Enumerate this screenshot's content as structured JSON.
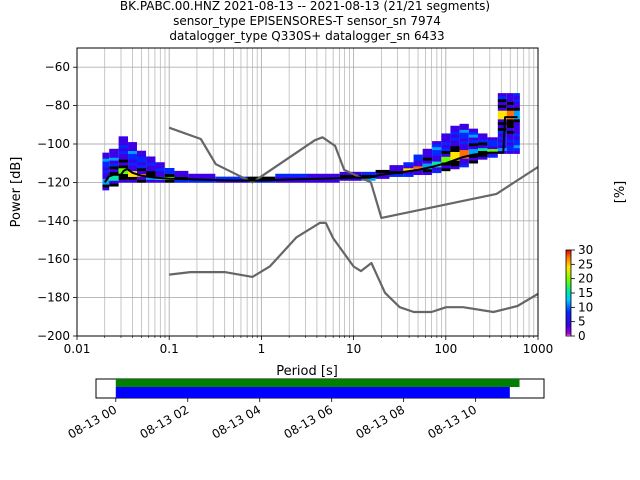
{
  "title_lines": [
    "BK.PABC.00.HNZ   2021-08-13 -- 2021-08-13  (21/21 segments)",
    "sensor_type EPISENSORES-T sensor_sn 7974",
    "datalogger_type Q330S+ datalogger_sn 6433"
  ],
  "colors": {
    "noise_model": "#666666",
    "mean_curve": "#000000",
    "grid": "#b0b0b0",
    "coverage_data": "#0000ff",
    "coverage_gaps": "#008000"
  },
  "chart_data": [
    {
      "type": "heatmap",
      "xlabel": "Period [s]",
      "ylabel": "Power [dB]",
      "x_scale": "log",
      "xlim": [
        0.01,
        1000
      ],
      "ylim": [
        -200,
        -50
      ],
      "x_ticks": [
        0.01,
        0.1,
        1,
        10,
        100,
        1000
      ],
      "x_tick_labels": [
        "0.01",
        "0.1",
        "1",
        "10",
        "100",
        "1000"
      ],
      "y_ticks": [
        -200,
        -180,
        -160,
        -140,
        -120,
        -100,
        -80,
        -60
      ],
      "y_tick_labels": [
        "−200",
        "−180",
        "−160",
        "−140",
        "−120",
        "−100",
        "−80",
        "−60"
      ],
      "grid": true,
      "colorbar": {
        "label": "[%]",
        "range": [
          0,
          30
        ],
        "ticks": [
          0,
          5,
          10,
          15,
          20,
          25,
          30
        ],
        "tick_labels": [
          "0",
          "5",
          "10",
          "15",
          "20",
          "25",
          "30"
        ],
        "colormap": "pqlx"
      },
      "series": [
        {
          "kind": "noise_model_high",
          "x": [
            0.1,
            0.22,
            0.32,
            0.8,
            3.8,
            4.6,
            6.3,
            7.9,
            15.4,
            20,
            354.8,
            1000
          ],
          "y": [
            -91.5,
            -97.4,
            -110.5,
            -120,
            -98,
            -96.5,
            -101,
            -113.5,
            -120,
            -138.5,
            -126,
            -112
          ]
        },
        {
          "kind": "noise_model_low",
          "x": [
            0.1,
            0.17,
            0.4,
            0.8,
            1.24,
            2.4,
            4.3,
            5.0,
            6.0,
            10,
            12,
            15.6,
            21.9,
            31.6,
            45,
            70,
            101,
            154,
            328,
            600,
            1000
          ],
          "y": [
            -168,
            -166.7,
            -166.7,
            -169.2,
            -163.7,
            -148.6,
            -141.1,
            -141.1,
            -149,
            -163.8,
            -166.2,
            -162,
            -177.5,
            -185,
            -187.5,
            -187.5,
            -185,
            -185,
            -187.5,
            -184.4,
            -178
          ]
        },
        {
          "kind": "mean",
          "x": [
            0.02,
            0.022,
            0.025,
            0.03,
            0.032,
            0.035,
            0.04,
            0.05,
            0.07,
            0.1,
            0.2,
            0.5,
            1,
            2,
            5,
            10,
            15,
            20,
            30,
            50,
            70,
            100,
            150,
            200,
            300,
            420,
            440,
            500,
            600
          ],
          "y": [
            -120,
            -117,
            -116,
            -116,
            -114,
            -113,
            -115,
            -116.5,
            -117.5,
            -118,
            -118.5,
            -119,
            -119,
            -118.5,
            -118,
            -117.5,
            -117.5,
            -116,
            -115,
            -113.5,
            -112,
            -110,
            -107,
            -105.5,
            -104.5,
            -104.5,
            -86,
            -86,
            -86
          ]
        }
      ],
      "psd_density": [
        {
          "period": 0.02,
          "spread": [
            -124,
            -105
          ],
          "mode": -120
        },
        {
          "period": 0.025,
          "spread": [
            -122,
            -104
          ],
          "mode": -118
        },
        {
          "period": 0.032,
          "spread": [
            -120,
            -97
          ],
          "mode": -115
        },
        {
          "period": 0.04,
          "spread": [
            -120,
            -100
          ],
          "mode": -116
        },
        {
          "period": 0.05,
          "spread": [
            -120,
            -104
          ],
          "mode": -117
        },
        {
          "period": 0.063,
          "spread": [
            -120,
            -108
          ],
          "mode": -118
        },
        {
          "period": 0.08,
          "spread": [
            -120,
            -111
          ],
          "mode": -118
        },
        {
          "period": 0.1,
          "spread": [
            -120,
            -113
          ],
          "mode": -118
        },
        {
          "period": 0.13,
          "spread": [
            -120,
            -115
          ],
          "mode": -118
        },
        {
          "period": 0.2,
          "spread": [
            -120,
            -117
          ],
          "mode": -119
        },
        {
          "period": 0.5,
          "spread": [
            -120,
            -118
          ],
          "mode": -119
        },
        {
          "period": 1,
          "spread": [
            -120,
            -118
          ],
          "mode": -119
        },
        {
          "period": 2,
          "spread": [
            -120,
            -117
          ],
          "mode": -118
        },
        {
          "period": 5,
          "spread": [
            -120,
            -117
          ],
          "mode": -118
        },
        {
          "period": 10,
          "spread": [
            -119,
            -116
          ],
          "mode": -118
        },
        {
          "period": 15,
          "spread": [
            -119,
            -115
          ],
          "mode": -117
        },
        {
          "period": 20,
          "spread": [
            -118,
            -114
          ],
          "mode": -116
        },
        {
          "period": 30,
          "spread": [
            -117,
            -112
          ],
          "mode": -115
        },
        {
          "period": 40,
          "spread": [
            -117,
            -110
          ],
          "mode": -114
        },
        {
          "period": 50,
          "spread": [
            -116,
            -106
          ],
          "mode": -113
        },
        {
          "period": 63,
          "spread": [
            -116,
            -103
          ],
          "mode": -112
        },
        {
          "period": 80,
          "spread": [
            -115,
            -99
          ],
          "mode": -111
        },
        {
          "period": 100,
          "spread": [
            -114,
            -95
          ],
          "mode": -109
        },
        {
          "period": 126,
          "spread": [
            -113,
            -92
          ],
          "mode": -107
        },
        {
          "period": 158,
          "spread": [
            -112,
            -91
          ],
          "mode": -106
        },
        {
          "period": 200,
          "spread": [
            -110,
            -93
          ],
          "mode": -105
        },
        {
          "period": 250,
          "spread": [
            -108,
            -96
          ],
          "mode": -104
        },
        {
          "period": 320,
          "spread": [
            -107,
            -98
          ],
          "mode": -104
        },
        {
          "period": 420,
          "spread": [
            -105,
            -75
          ],
          "mode": -86
        },
        {
          "period": 500,
          "spread": [
            -105,
            -74
          ],
          "mode": -86
        },
        {
          "period": 600,
          "spread": [
            -105,
            -74
          ],
          "mode": -86
        }
      ]
    },
    {
      "type": "bar",
      "orientation": "horizontal",
      "x_type": "time",
      "x_ticks": [
        "08-13 00",
        "08-13 02",
        "08-13 04",
        "08-13 06",
        "08-13 08",
        "08-13 10"
      ],
      "xlim_hours": [
        -0.55,
        11.9
      ],
      "series": [
        {
          "kind": "gaps",
          "start_hour": 0.0,
          "end_hour": 11.22
        },
        {
          "kind": "data",
          "start_hour": 0.0,
          "end_hour": 10.95
        }
      ]
    }
  ]
}
